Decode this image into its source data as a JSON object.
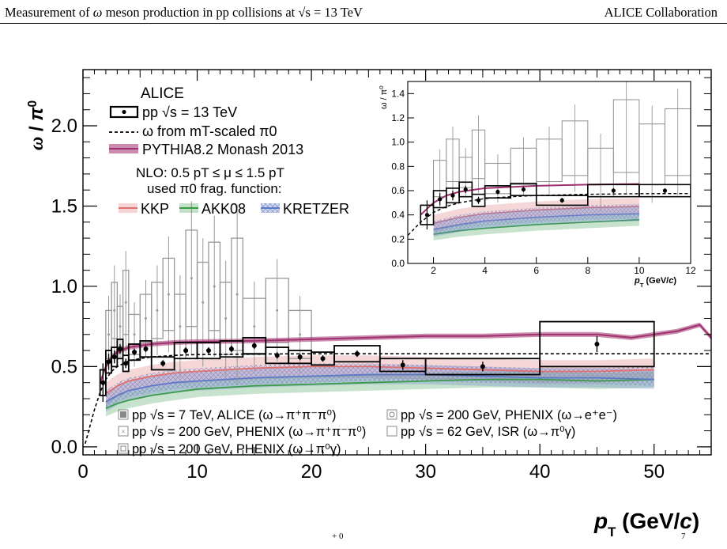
{
  "header": {
    "title_prefix": "Measurement of",
    "title_omega": "ω",
    "title_mid": "meson production in pp collisions at",
    "title_sqrt": "√s",
    "title_suffix": "= 13 TeV",
    "collaboration": "ALICE Collaboration"
  },
  "caption_fragments": [
    "+ 0",
    "7"
  ],
  "chart_data": [
    {
      "type": "scatter",
      "panel": "main",
      "ylabel": "ω / π⁰",
      "xlabel": "p_T (GeV/c)",
      "xlim": [
        0,
        55
      ],
      "ylim": [
        -0.05,
        2.35
      ],
      "x_ticks": [
        0,
        10,
        20,
        30,
        40,
        50
      ],
      "y_ticks": [
        0.0,
        0.5,
        1.0,
        1.5,
        2.0
      ],
      "legend_top": {
        "title": "ALICE",
        "entries": [
          "pp √s = 13 TeV",
          "ω from mT-scaled π0",
          "PYTHIA8.2 Monash 2013"
        ],
        "nlo_line1": "NLO: 0.5 pT ≤ μ ≤ 1.5 pT",
        "nlo_line2": "used π0 frag. function:",
        "ff_labels": [
          "KKP",
          "AKK08",
          "KRETZER"
        ]
      },
      "legend_bottom": [
        "pp √s = 7 TeV, ALICE (ω→π⁺π⁻π⁰)",
        "pp √s = 200 GeV, PHENIX (ω→π⁺π⁻π⁰)",
        "pp √s = 200 GeV, PHENIX (ω→π⁰γ)",
        "pp √s = 200 GeV, PHENIX (ω→e⁺e⁻)",
        "pp √s = 62 GeV, ISR (ω→π⁰γ)"
      ],
      "series": [
        {
          "name": "pp √s = 13 TeV",
          "color": "#000000",
          "points": [
            {
              "x": 1.75,
              "y": 0.4,
              "xlo": 1.5,
              "xhi": 2.0,
              "ey": 0.12,
              "sy": 0.08
            },
            {
              "x": 2.25,
              "y": 0.53,
              "xlo": 2.0,
              "xhi": 2.5,
              "ey": 0.05,
              "sy": 0.07
            },
            {
              "x": 2.75,
              "y": 0.56,
              "xlo": 2.5,
              "xhi": 3.0,
              "ey": 0.04,
              "sy": 0.06
            },
            {
              "x": 3.25,
              "y": 0.61,
              "xlo": 3.0,
              "xhi": 3.5,
              "ey": 0.03,
              "sy": 0.06
            },
            {
              "x": 3.75,
              "y": 0.52,
              "xlo": 3.5,
              "xhi": 4.0,
              "ey": 0.03,
              "sy": 0.05
            },
            {
              "x": 4.5,
              "y": 0.59,
              "xlo": 4.0,
              "xhi": 5.0,
              "ey": 0.02,
              "sy": 0.05
            },
            {
              "x": 5.5,
              "y": 0.61,
              "xlo": 5.0,
              "xhi": 6.0,
              "ey": 0.02,
              "sy": 0.05
            },
            {
              "x": 7.0,
              "y": 0.52,
              "xlo": 6.0,
              "xhi": 8.0,
              "ey": 0.02,
              "sy": 0.04
            },
            {
              "x": 9.0,
              "y": 0.6,
              "xlo": 8.0,
              "xhi": 10.0,
              "ey": 0.02,
              "sy": 0.05
            },
            {
              "x": 11.0,
              "y": 0.6,
              "xlo": 10.0,
              "xhi": 12.0,
              "ey": 0.02,
              "sy": 0.05
            },
            {
              "x": 13.0,
              "y": 0.61,
              "xlo": 12.0,
              "xhi": 14.0,
              "ey": 0.02,
              "sy": 0.05
            },
            {
              "x": 15.0,
              "y": 0.63,
              "xlo": 14.0,
              "xhi": 16.0,
              "ey": 0.02,
              "sy": 0.05
            },
            {
              "x": 17.0,
              "y": 0.57,
              "xlo": 16.0,
              "xhi": 18.0,
              "ey": 0.02,
              "sy": 0.05
            },
            {
              "x": 19.0,
              "y": 0.56,
              "xlo": 18.0,
              "xhi": 20.0,
              "ey": 0.02,
              "sy": 0.04
            },
            {
              "x": 21.0,
              "y": 0.55,
              "xlo": 20.0,
              "xhi": 22.0,
              "ey": 0.02,
              "sy": 0.04
            },
            {
              "x": 24.0,
              "y": 0.58,
              "xlo": 22.0,
              "xhi": 26.0,
              "ey": 0.02,
              "sy": 0.05
            },
            {
              "x": 28.0,
              "y": 0.51,
              "xlo": 26.0,
              "xhi": 30.0,
              "ey": 0.03,
              "sy": 0.04
            },
            {
              "x": 35.0,
              "y": 0.5,
              "xlo": 30.0,
              "xhi": 40.0,
              "ey": 0.03,
              "sy": 0.05
            },
            {
              "x": 45.0,
              "y": 0.64,
              "xlo": 40.0,
              "xhi": 50.0,
              "ey": 0.05,
              "sy": 0.14
            }
          ]
        },
        {
          "name": "ω from mT-scaled π0",
          "color": "#000000",
          "x": [
            0.2,
            0.5,
            1.0,
            1.5,
            2.0,
            2.5,
            3.0,
            4.0,
            5.0,
            6.0,
            8.0,
            10.0,
            15.0,
            20.0,
            30.0,
            40.0,
            55.0
          ],
          "y": [
            0.02,
            0.1,
            0.23,
            0.34,
            0.42,
            0.47,
            0.5,
            0.535,
            0.55,
            0.56,
            0.57,
            0.575,
            0.578,
            0.58,
            0.58,
            0.58,
            0.58
          ]
        },
        {
          "name": "PYTHIA8.2 Monash 2013",
          "color": "#a0306e",
          "x": [
            1.5,
            2.0,
            2.5,
            3.0,
            4.0,
            5.0,
            6.0,
            8.0,
            10.0,
            15.0,
            20.0,
            25.0,
            30.0,
            35.0,
            40.0,
            45.0,
            48.0,
            50.0,
            52.0,
            54.0,
            55.0
          ],
          "y": [
            0.4,
            0.5,
            0.56,
            0.59,
            0.62,
            0.63,
            0.64,
            0.65,
            0.655,
            0.66,
            0.67,
            0.68,
            0.69,
            0.69,
            0.7,
            0.7,
            0.68,
            0.7,
            0.72,
            0.76,
            0.68
          ],
          "band": 0.015
        },
        {
          "name": "KKP",
          "color": "#e07070",
          "x": [
            2,
            3,
            4,
            6,
            8,
            10,
            15,
            20,
            25,
            30,
            35,
            40,
            45,
            50
          ],
          "y": [
            0.33,
            0.38,
            0.41,
            0.44,
            0.46,
            0.47,
            0.49,
            0.5,
            0.5,
            0.49,
            0.48,
            0.47,
            0.47,
            0.48
          ],
          "band": 0.07
        },
        {
          "name": "AKK08",
          "color": "#3a9a4a",
          "x": [
            2,
            3,
            4,
            6,
            8,
            10,
            15,
            20,
            25,
            30,
            35,
            40,
            45,
            50
          ],
          "y": [
            0.24,
            0.27,
            0.29,
            0.32,
            0.34,
            0.36,
            0.38,
            0.39,
            0.4,
            0.41,
            0.42,
            0.42,
            0.41,
            0.42
          ],
          "band": 0.05
        },
        {
          "name": "KRETZER",
          "color": "#5a7ac8",
          "x": [
            2,
            3,
            4,
            6,
            8,
            10,
            15,
            20,
            25,
            30,
            35,
            40,
            45,
            50
          ],
          "y": [
            0.28,
            0.32,
            0.35,
            0.38,
            0.4,
            0.41,
            0.43,
            0.44,
            0.45,
            0.45,
            0.44,
            0.43,
            0.43,
            0.42
          ],
          "band": 0.06
        },
        {
          "name": "pp √s = 200 GeV, PHENIX",
          "color": "#999999",
          "points": [
            {
              "x": 2.25,
              "y": 0.7,
              "w": 0.5,
              "h": 0.3
            },
            {
              "x": 2.75,
              "y": 0.85,
              "w": 0.5,
              "h": 0.35
            },
            {
              "x": 3.25,
              "y": 0.75,
              "w": 0.5,
              "h": 0.25
            },
            {
              "x": 3.75,
              "y": 0.9,
              "w": 0.5,
              "h": 0.4
            },
            {
              "x": 4.5,
              "y": 0.7,
              "w": 1.0,
              "h": 0.25
            },
            {
              "x": 5.5,
              "y": 0.8,
              "w": 1.0,
              "h": 0.3
            },
            {
              "x": 6.5,
              "y": 0.85,
              "w": 1.0,
              "h": 0.35
            },
            {
              "x": 7.5,
              "y": 0.95,
              "w": 1.0,
              "h": 0.45
            },
            {
              "x": 8.5,
              "y": 0.75,
              "w": 1.0,
              "h": 0.4
            },
            {
              "x": 9.5,
              "y": 1.05,
              "w": 1.0,
              "h": 0.6
            },
            {
              "x": 10.5,
              "y": 0.9,
              "w": 1.0,
              "h": 0.5
            },
            {
              "x": 11.5,
              "y": 1.0,
              "w": 1.0,
              "h": 0.55
            },
            {
              "x": 12.5,
              "y": 0.8,
              "w": 1.0,
              "h": 0.45
            },
            {
              "x": 13.5,
              "y": 0.95,
              "w": 1.0,
              "h": 0.7
            },
            {
              "x": 15.0,
              "y": 0.75,
              "w": 2.0,
              "h": 0.35
            },
            {
              "x": 17.0,
              "y": 0.85,
              "w": 2.0,
              "h": 0.4
            },
            {
              "x": 19.0,
              "y": 0.7,
              "w": 2.0,
              "h": 0.3
            }
          ]
        }
      ]
    },
    {
      "type": "scatter",
      "panel": "inset",
      "ylabel": "ω / π⁰",
      "xlabel": "p_T (GeV/c)",
      "xlim": [
        1,
        12
      ],
      "ylim": [
        0,
        1.5
      ],
      "x_ticks": [
        2,
        4,
        6,
        8,
        10,
        12
      ],
      "y_ticks": [
        0.0,
        0.2,
        0.4,
        0.6,
        0.8,
        1.0,
        1.2,
        1.4
      ]
    }
  ]
}
